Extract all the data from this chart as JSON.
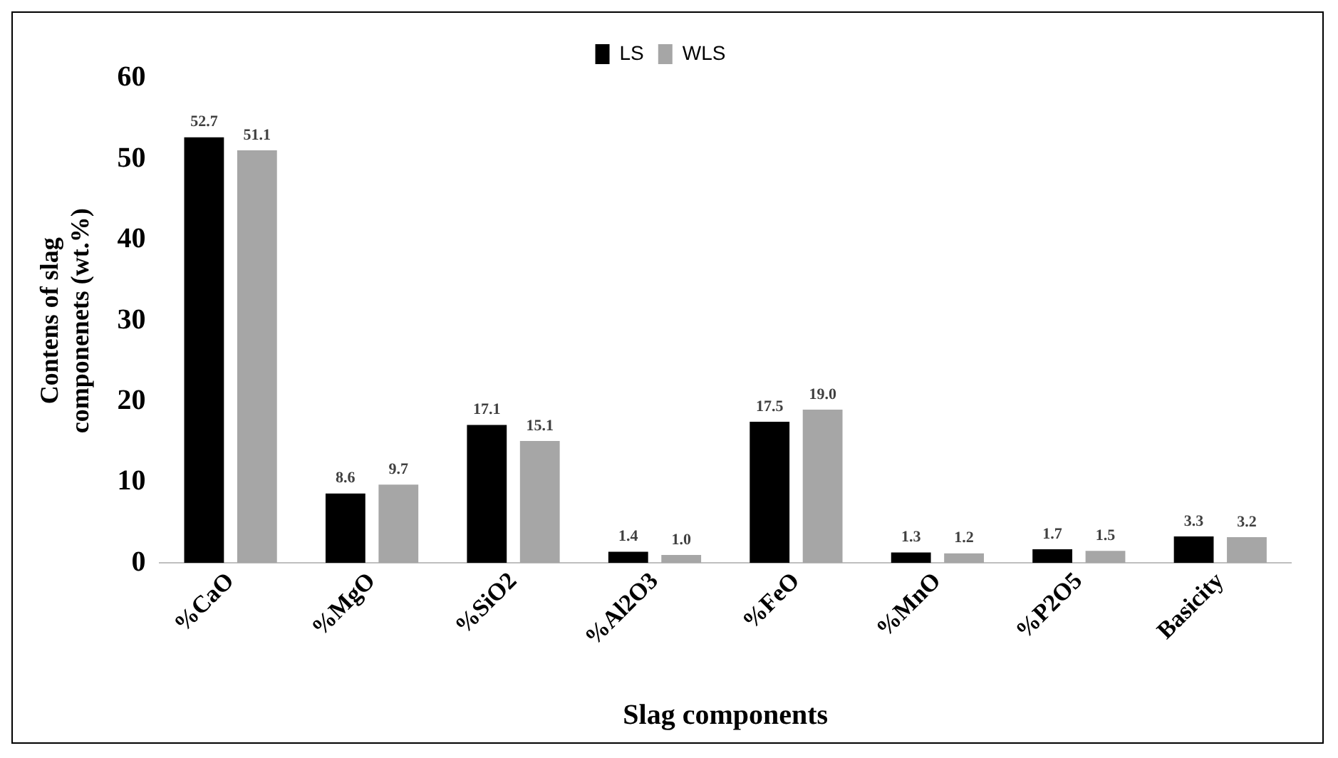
{
  "chart_data": {
    "type": "bar",
    "xlabel": "Slag components",
    "ylabel": "Contens of slag componenets (wt.%)",
    "categories": [
      "%CaO",
      "%MgO",
      "%SiO2",
      "%Al2O3",
      "%FeO",
      "%MnO",
      "%P2O5",
      "Basicity"
    ],
    "series": [
      {
        "name": "LS",
        "color": "#000000",
        "values": [
          52.7,
          8.6,
          17.1,
          1.4,
          17.5,
          1.3,
          1.7,
          3.3
        ],
        "value_labels": [
          "52.7",
          "8.6",
          "17.1",
          "1.4",
          "17.5",
          "1.3",
          "1.7",
          "3.3"
        ]
      },
      {
        "name": "WLS",
        "color": "#a6a6a6",
        "values": [
          51.1,
          9.7,
          15.1,
          1.0,
          19.0,
          1.2,
          1.5,
          3.2
        ],
        "value_labels": [
          "51.1",
          "9.7",
          "15.1",
          "1.0",
          "19.0",
          "1.2",
          "1.5",
          "3.2"
        ]
      }
    ],
    "ylim": [
      0,
      60
    ],
    "yticks": [
      0,
      10,
      20,
      30,
      40,
      50,
      60
    ],
    "grid": false,
    "legend": "top"
  }
}
